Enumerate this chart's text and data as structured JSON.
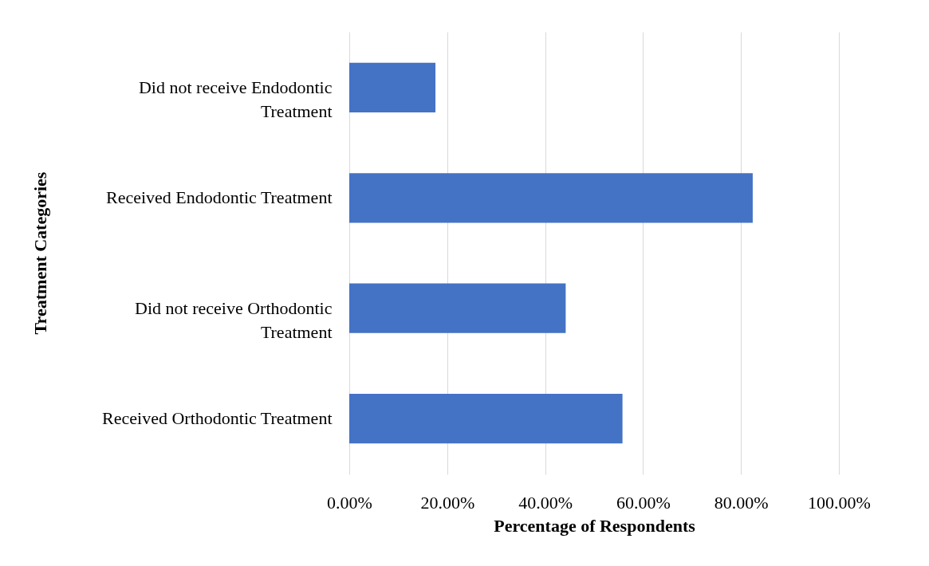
{
  "chart_data": {
    "type": "bar",
    "orientation": "horizontal",
    "xlabel": "Percentage of Respondents",
    "ylabel": "Treatment Categories",
    "categories": [
      "Did not receive Endodontic Treatment",
      "Received Endodontic Treatment",
      "Did not receive Orthodontic Treatment",
      "Received Orthodontic Treatment"
    ],
    "values": [
      17.6,
      82.4,
      44.2,
      55.8
    ],
    "color": "#4472c4",
    "xlim": [
      0,
      100
    ],
    "xticks": [
      {
        "value": 0,
        "label": "0.00%"
      },
      {
        "value": 20,
        "label": "20.00%"
      },
      {
        "value": 40,
        "label": "40.00%"
      },
      {
        "value": 60,
        "label": "60.00%"
      },
      {
        "value": 80,
        "label": "80.00%"
      },
      {
        "value": 100,
        "label": "100.00%"
      }
    ],
    "grid": "x"
  }
}
